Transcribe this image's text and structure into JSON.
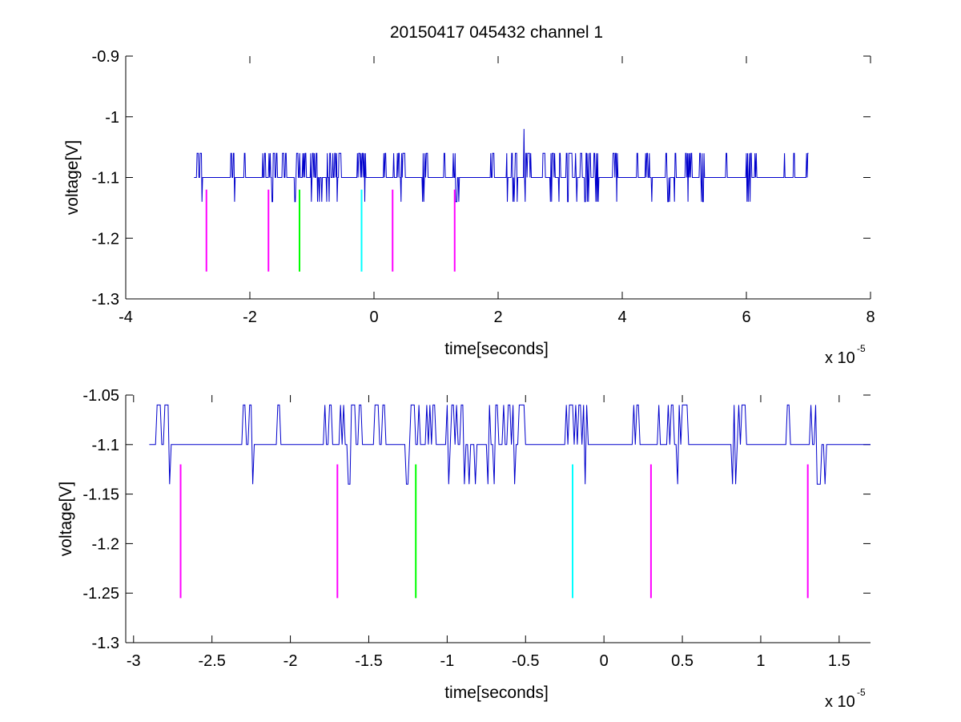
{
  "figure": {
    "title": "20150417 045432 channel 1"
  },
  "chart_data": [
    {
      "type": "line",
      "title": "20150417 045432 channel 1",
      "xlabel": "time[seconds]",
      "ylabel": "voltage[V]",
      "x_exponent_label": "x 10",
      "x_exponent": "-5",
      "xlim": [
        -4,
        8
      ],
      "ylim": [
        -1.3,
        -0.9
      ],
      "x_ticks": [
        -4,
        -2,
        0,
        2,
        4,
        6,
        8
      ],
      "x_tick_labels": [
        "-4",
        "-2",
        "0",
        "2",
        "4",
        "6",
        "8"
      ],
      "y_ticks": [
        -1.3,
        -1.2,
        -1.1,
        -1.0,
        -0.9
      ],
      "y_tick_labels": [
        "-1.3",
        "-1.2",
        "-1.1",
        "-1",
        "-0.9"
      ],
      "grid": false,
      "trace": {
        "color": "#0000cc",
        "x_start": -2.9,
        "x_end": 7.0,
        "baseline": -1.1,
        "levels": [
          -1.06,
          -1.1,
          -1.14
        ],
        "spike": {
          "x": 2.42,
          "y": -1.02
        }
      },
      "markers": [
        {
          "x": -2.7,
          "y_top": -1.12,
          "y_bottom": -1.255,
          "color": "#ff00ff"
        },
        {
          "x": -1.7,
          "y_top": -1.12,
          "y_bottom": -1.255,
          "color": "#ff00ff"
        },
        {
          "x": -1.2,
          "y_top": -1.12,
          "y_bottom": -1.255,
          "color": "#00ff00"
        },
        {
          "x": -0.2,
          "y_top": -1.12,
          "y_bottom": -1.255,
          "color": "#00ffff"
        },
        {
          "x": 0.3,
          "y_top": -1.12,
          "y_bottom": -1.255,
          "color": "#ff00ff"
        },
        {
          "x": 1.3,
          "y_top": -1.12,
          "y_bottom": -1.255,
          "color": "#ff00ff"
        }
      ]
    },
    {
      "type": "line",
      "title": "",
      "xlabel": "time[seconds]",
      "ylabel": "voltage[V]",
      "x_exponent_label": "x 10",
      "x_exponent": "-5",
      "xlim": [
        -3.05,
        1.7
      ],
      "ylim": [
        -1.3,
        -1.05
      ],
      "x_ticks": [
        -3,
        -2.5,
        -2,
        -1.5,
        -1,
        -0.5,
        0,
        0.5,
        1,
        1.5
      ],
      "x_tick_labels": [
        "-3",
        "-2.5",
        "-2",
        "-1.5",
        "-1",
        "-0.5",
        "0",
        "0.5",
        "1",
        "1.5"
      ],
      "y_ticks": [
        -1.3,
        -1.25,
        -1.2,
        -1.15,
        -1.1,
        -1.05
      ],
      "y_tick_labels": [
        "-1.3",
        "-1.25",
        "-1.2",
        "-1.15",
        "-1.1",
        "-1.05"
      ],
      "grid": false,
      "trace": {
        "color": "#0000cc",
        "x_start": -2.9,
        "x_end": 1.7,
        "baseline": -1.1,
        "levels": [
          -1.06,
          -1.1,
          -1.14
        ]
      },
      "markers": [
        {
          "x": -2.7,
          "y_top": -1.12,
          "y_bottom": -1.255,
          "color": "#ff00ff"
        },
        {
          "x": -1.7,
          "y_top": -1.12,
          "y_bottom": -1.255,
          "color": "#ff00ff"
        },
        {
          "x": -1.2,
          "y_top": -1.12,
          "y_bottom": -1.255,
          "color": "#00ff00"
        },
        {
          "x": -0.2,
          "y_top": -1.12,
          "y_bottom": -1.255,
          "color": "#00ffff"
        },
        {
          "x": 0.3,
          "y_top": -1.12,
          "y_bottom": -1.255,
          "color": "#ff00ff"
        },
        {
          "x": 1.3,
          "y_top": -1.12,
          "y_bottom": -1.255,
          "color": "#ff00ff"
        }
      ]
    }
  ]
}
